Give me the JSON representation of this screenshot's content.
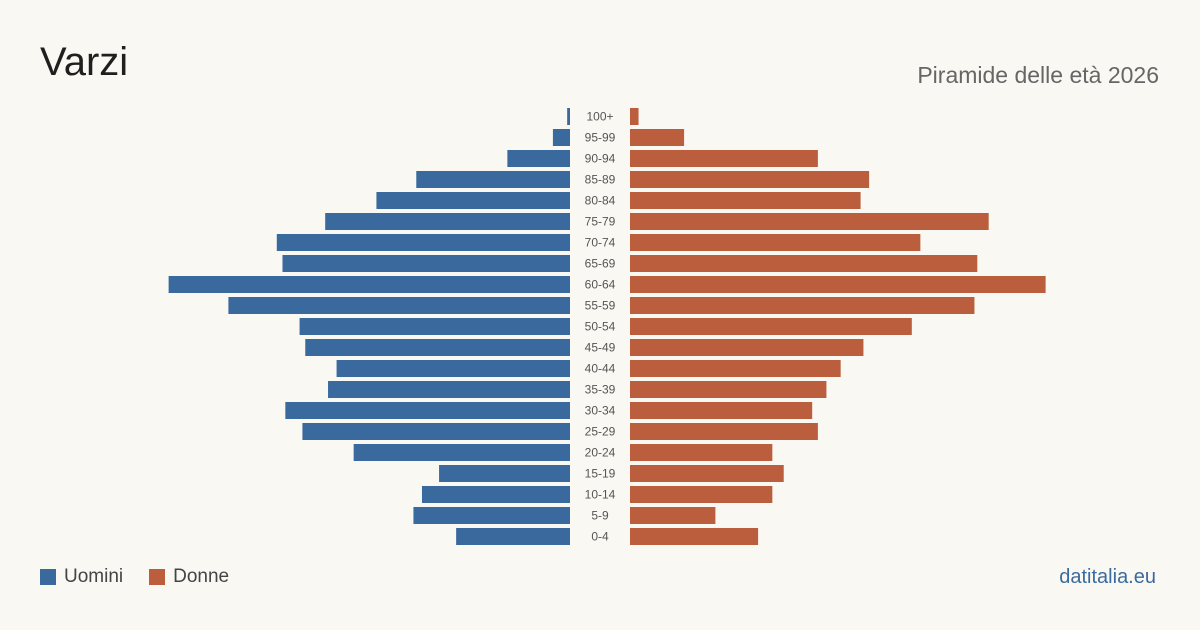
{
  "header": {
    "title": "Varzi",
    "subtitle": "Piramide delle età 2026"
  },
  "legend": {
    "male_label": "Uomini",
    "female_label": "Donne"
  },
  "source": "datitalia.eu",
  "colors": {
    "male": "#3a6a9d",
    "female": "#bb5e3d",
    "background": "#faf8f3"
  },
  "chart_data": {
    "type": "bar",
    "orientation": "horizontal-pyramid",
    "categories": [
      "100+",
      "95-99",
      "90-94",
      "85-89",
      "80-84",
      "75-79",
      "70-74",
      "65-69",
      "60-64",
      "55-59",
      "50-54",
      "45-49",
      "40-44",
      "35-39",
      "30-34",
      "25-29",
      "20-24",
      "15-19",
      "10-14",
      "5-9",
      "0-4"
    ],
    "series": [
      {
        "name": "Uomini",
        "values": [
          1,
          6,
          22,
          54,
          68,
          86,
          103,
          101,
          141,
          120,
          95,
          93,
          82,
          85,
          100,
          94,
          76,
          46,
          52,
          55,
          40
        ]
      },
      {
        "name": "Donne",
        "values": [
          3,
          19,
          66,
          84,
          81,
          126,
          102,
          122,
          146,
          121,
          99,
          82,
          74,
          69,
          64,
          66,
          50,
          54,
          50,
          30,
          45
        ]
      }
    ],
    "xlim": [
      0,
      150
    ],
    "grid": false,
    "legend_position": "bottom-left"
  }
}
